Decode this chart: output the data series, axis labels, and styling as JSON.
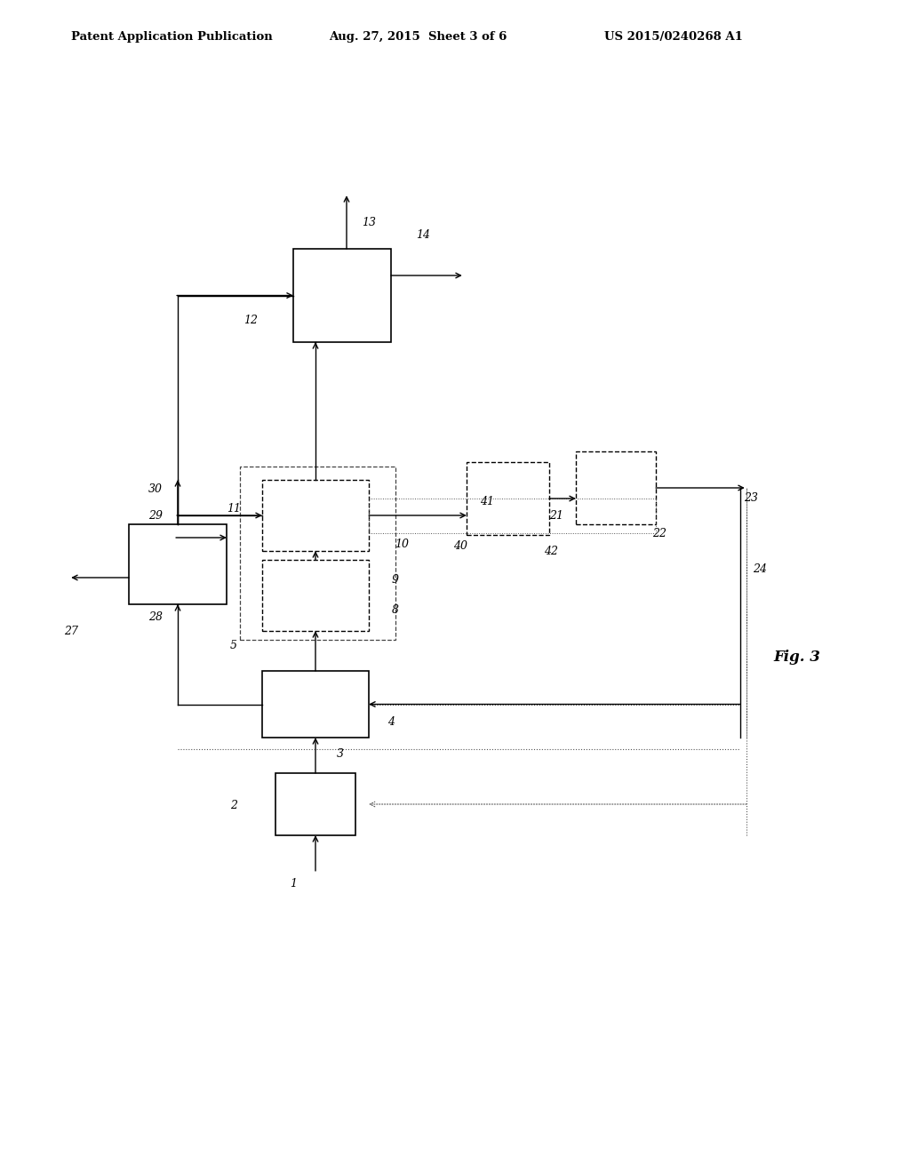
{
  "title_left": "Patent Application Publication",
  "title_mid": "Aug. 27, 2015  Sheet 3 of 6",
  "title_right": "US 2015/0240268 A1",
  "fig_label": "Fig. 3",
  "bg_color": "#ffffff"
}
